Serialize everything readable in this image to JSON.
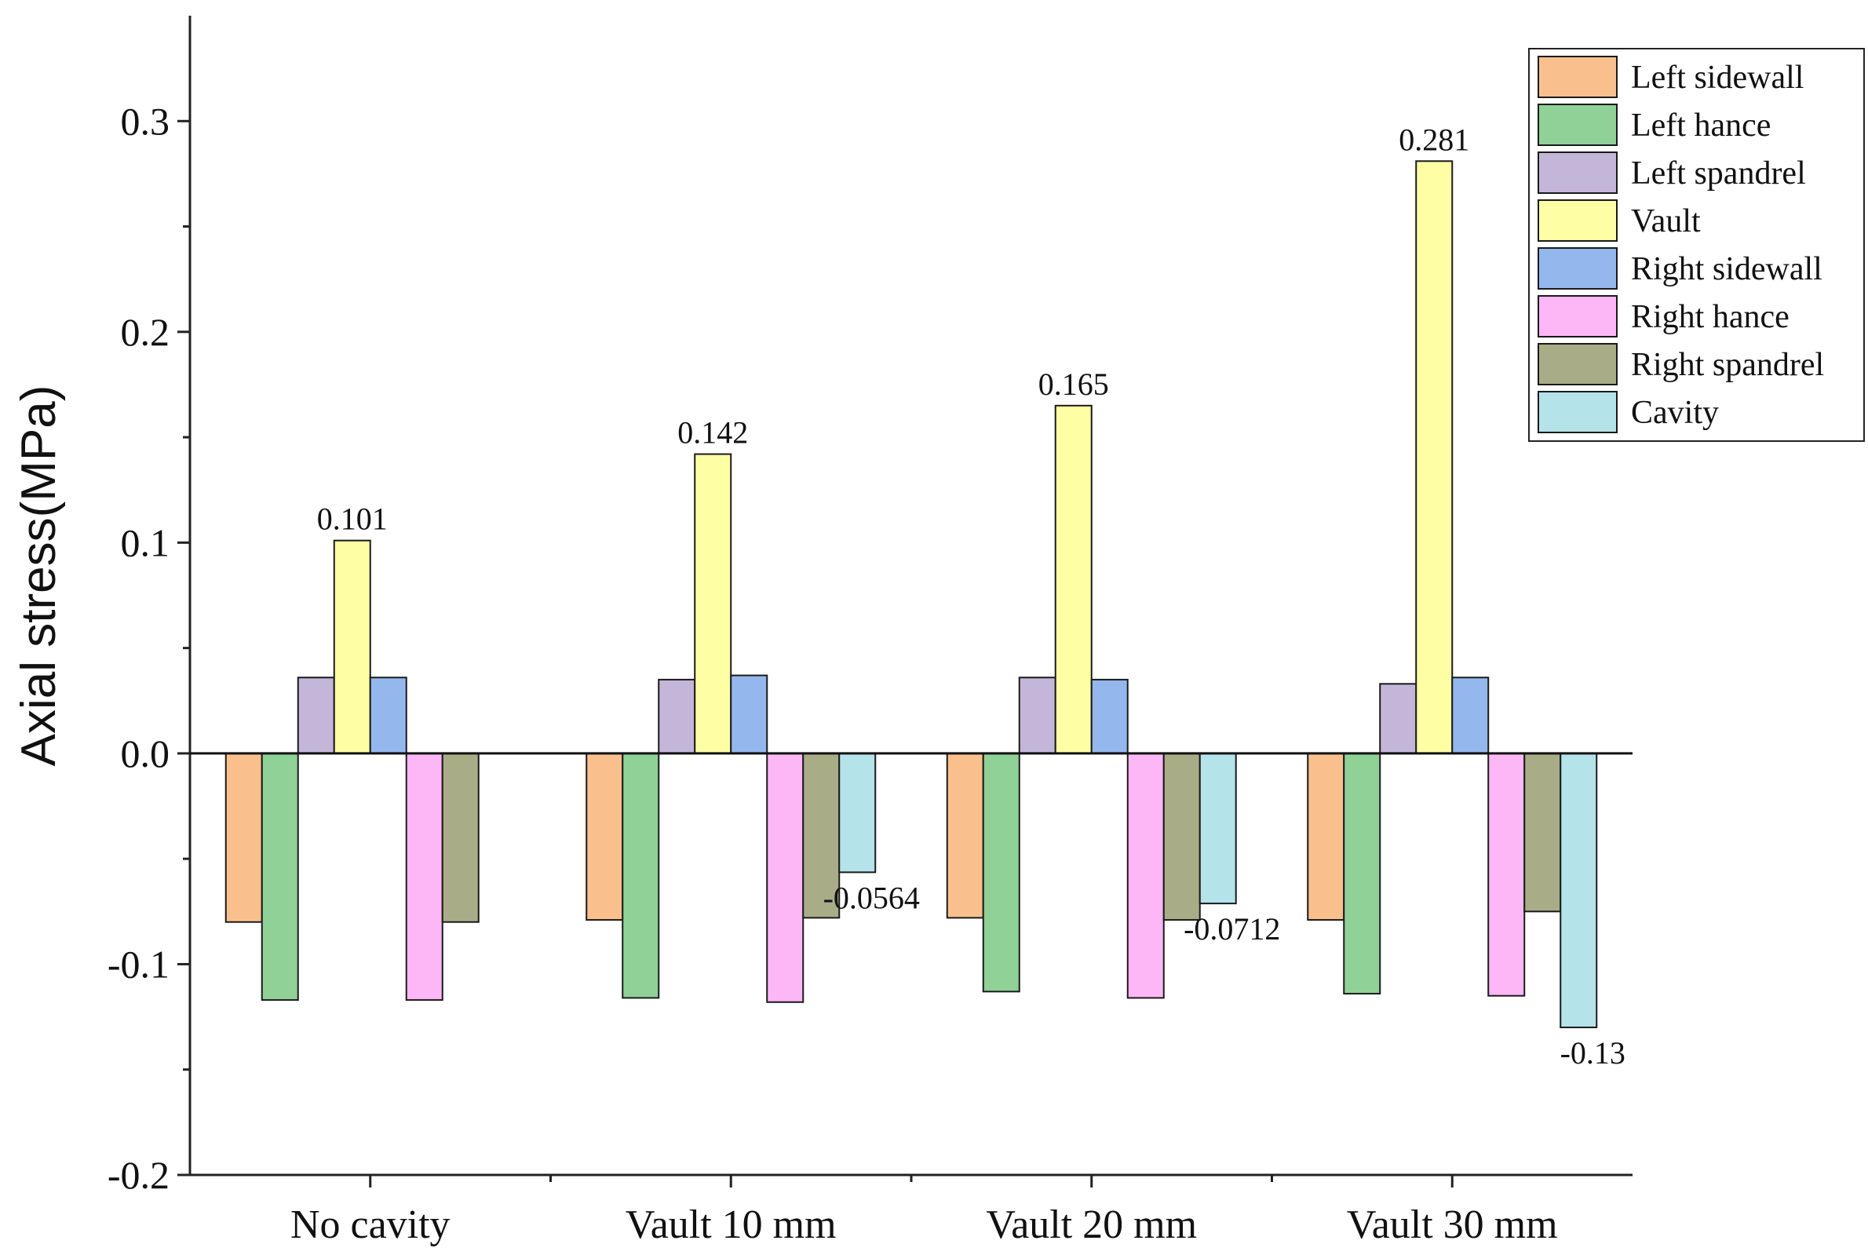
{
  "chart_data": {
    "type": "bar",
    "title": "",
    "xlabel": "",
    "ylabel": "Axial stress(MPa)",
    "ylim": [
      -0.2,
      0.35
    ],
    "yticks": [
      "-0.2",
      "-0.1",
      "0.0",
      "0.1",
      "0.2",
      "0.3"
    ],
    "ytick_values": [
      -0.2,
      -0.1,
      0.0,
      0.1,
      0.2,
      0.3
    ],
    "grid": false,
    "legend_position": "top-right",
    "categories": [
      "No cavity",
      "Vault 10 mm",
      "Vault 20 mm",
      "Vault 30 mm"
    ],
    "series": [
      {
        "name": "Left sidewall",
        "color": "#f9c08e",
        "values": [
          -0.08,
          -0.079,
          -0.078,
          -0.079
        ]
      },
      {
        "name": "Left hance",
        "color": "#8fd196",
        "values": [
          -0.117,
          -0.116,
          -0.113,
          -0.114
        ]
      },
      {
        "name": "Left spandrel",
        "color": "#c4b6d8",
        "values": [
          0.036,
          0.035,
          0.036,
          0.033
        ]
      },
      {
        "name": "Vault",
        "color": "#feffa5",
        "values": [
          0.101,
          0.142,
          0.165,
          0.281
        ]
      },
      {
        "name": "Right sidewall",
        "color": "#94b8ee",
        "values": [
          0.036,
          0.037,
          0.035,
          0.036
        ]
      },
      {
        "name": "Right hance",
        "color": "#fdb6f6",
        "values": [
          -0.117,
          -0.118,
          -0.116,
          -0.115
        ]
      },
      {
        "name": "Right spandrel",
        "color": "#a8ad87",
        "values": [
          -0.08,
          -0.078,
          -0.079,
          -0.075
        ]
      },
      {
        "name": "Cavity",
        "color": "#b5e3ea",
        "values": [
          null,
          -0.0564,
          -0.0712,
          -0.13
        ]
      }
    ],
    "data_labels": [
      {
        "category": 0,
        "series": 3,
        "text": "0.101"
      },
      {
        "category": 1,
        "series": 3,
        "text": "0.142"
      },
      {
        "category": 2,
        "series": 3,
        "text": "0.165"
      },
      {
        "category": 3,
        "series": 3,
        "text": "0.281"
      },
      {
        "category": 1,
        "series": 7,
        "text": "-0.0564"
      },
      {
        "category": 2,
        "series": 7,
        "text": "-0.0712"
      },
      {
        "category": 3,
        "series": 7,
        "text": "-0.13"
      }
    ]
  }
}
